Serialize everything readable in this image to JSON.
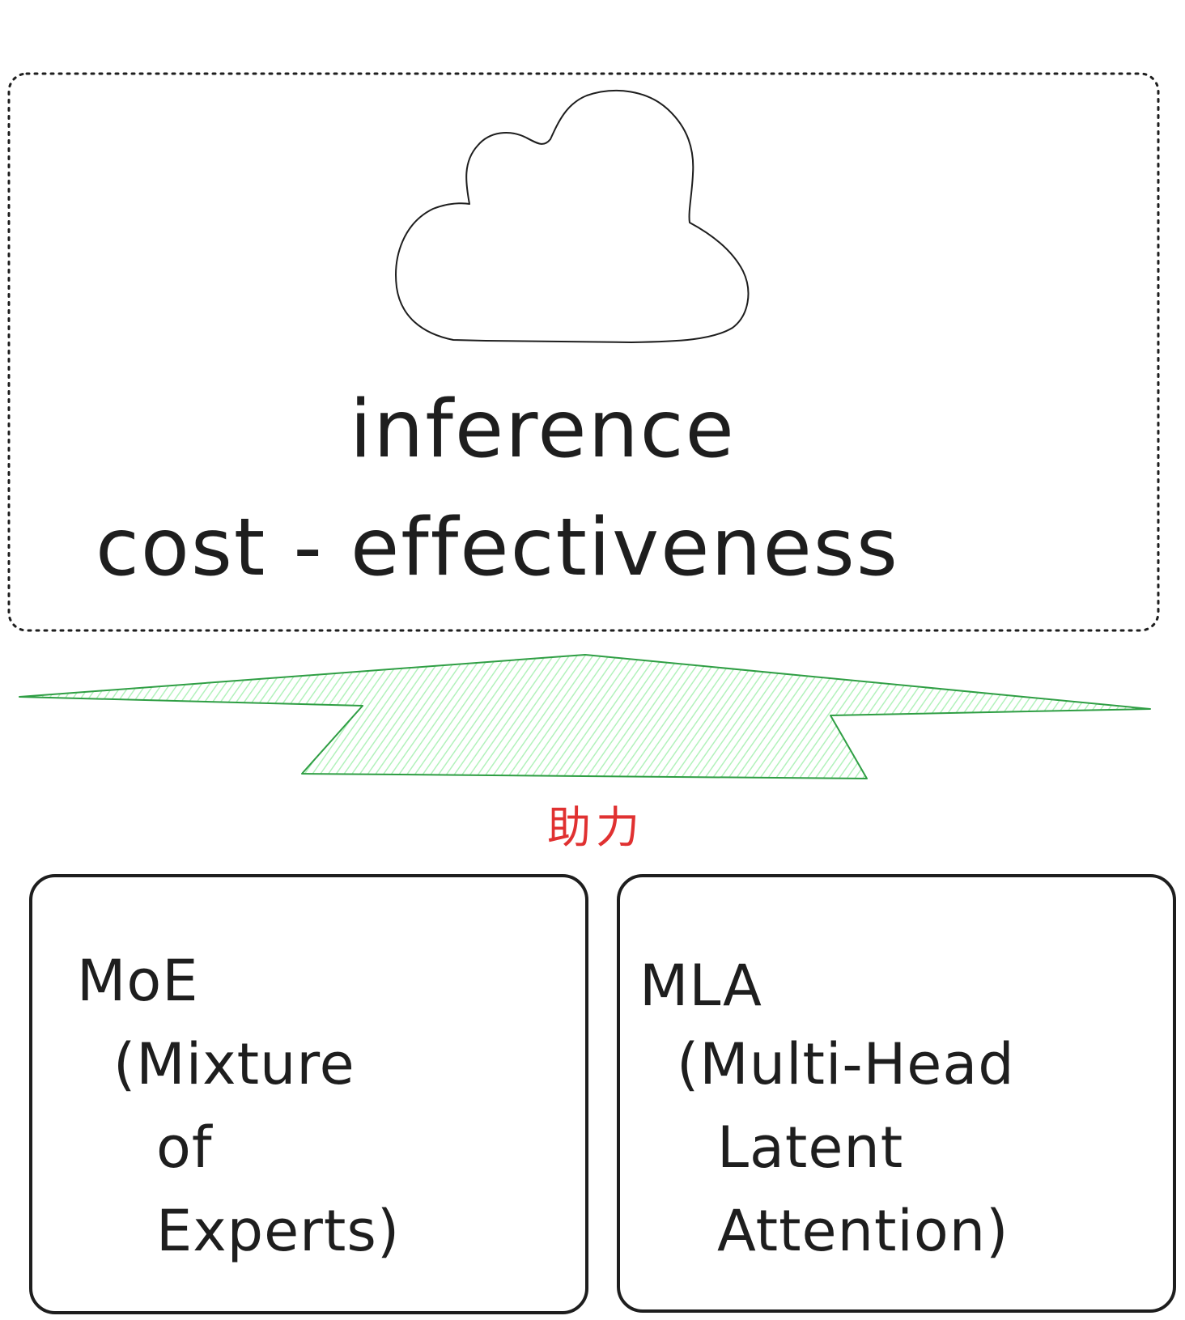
{
  "diagram": {
    "title_lines": [
      "inference",
      "cost - effectiveness"
    ],
    "connector_label": "助力",
    "left_box": {
      "lines": [
        "MoE",
        "(Mixture",
        "of",
        "Experts)"
      ]
    },
    "right_box": {
      "lines": [
        "MLA",
        "(Multi-Head",
        "Latent",
        "Attention)"
      ]
    },
    "colors": {
      "stroke": "#1e1e1e",
      "arrow_stroke": "#2f9e44",
      "arrow_fill": "#b2f2bb",
      "label": "#e03131"
    },
    "icons": [
      "cloud-icon",
      "arrow-up-shape"
    ]
  }
}
